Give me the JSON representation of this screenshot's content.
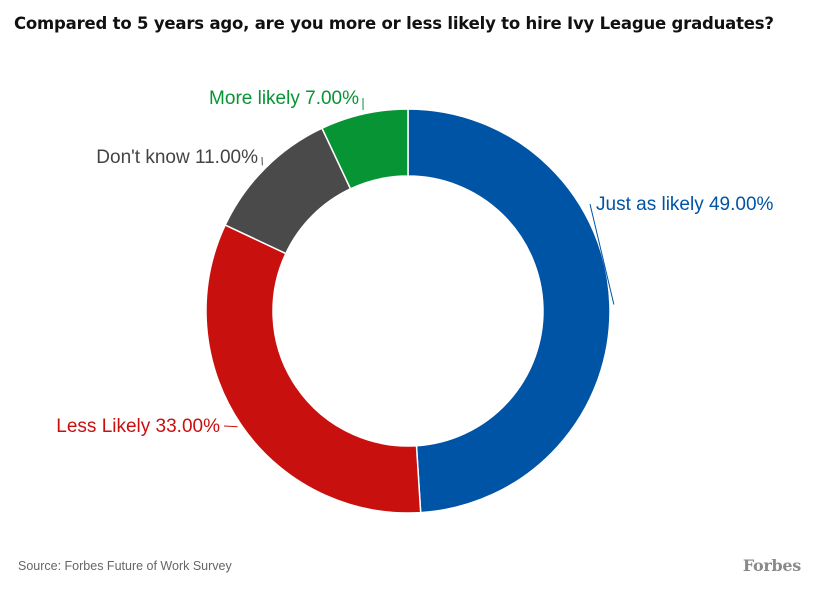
{
  "title": "Compared to 5 years ago, are you more or less likely to hire Ivy League graduates?",
  "source": "Source: Forbes Future of Work Survey",
  "logo_text": "Forbes",
  "chart_data": {
    "type": "pie",
    "donut": true,
    "title": "Compared to 5 years ago, are you more or less likely to hire Ivy League graduates?",
    "slices": [
      {
        "label": "Just as likely",
        "value": 49,
        "display": "Just as likely 49.00%",
        "color": "#0054a6"
      },
      {
        "label": "Less Likely",
        "value": 33,
        "display": "Less Likely 33.00%",
        "color": "#c8100f"
      },
      {
        "label": "Don't know",
        "value": 11,
        "display": "Don't know 11.00%",
        "color": "#4a4a4a"
      },
      {
        "label": "More likely",
        "value": 7,
        "display": "More likely 7.00%",
        "color": "#079434"
      }
    ]
  }
}
